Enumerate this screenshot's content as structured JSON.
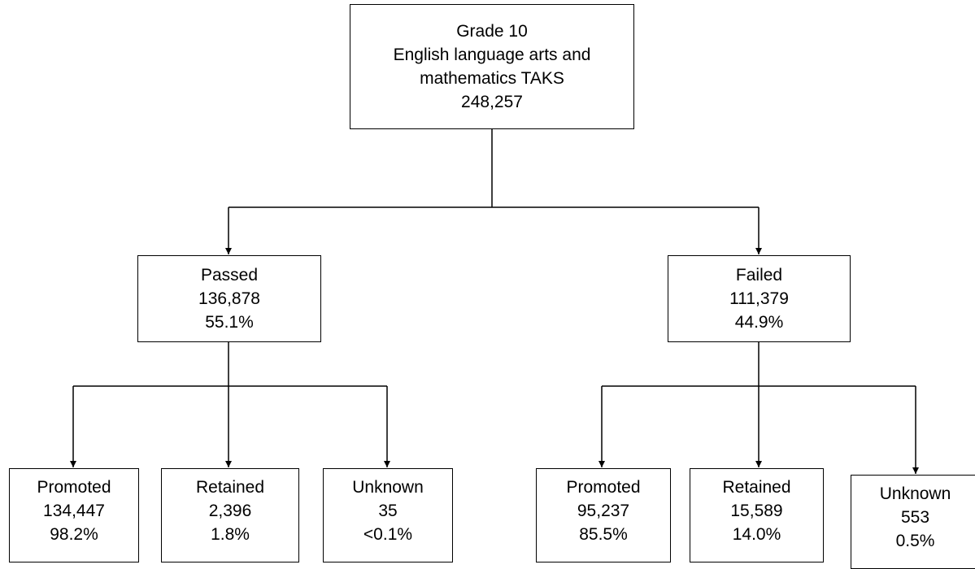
{
  "root": {
    "line1": "Grade 10",
    "line2": "English language arts and",
    "line3": "mathematics TAKS",
    "count": "248,257"
  },
  "passed": {
    "label": "Passed",
    "count": "136,878",
    "pct": "55.1%"
  },
  "failed": {
    "label": "Failed",
    "count": "111,379",
    "pct": "44.9%"
  },
  "passed_children": [
    {
      "label": "Promoted",
      "count": "134,447",
      "pct": "98.2%"
    },
    {
      "label": "Retained",
      "count": "2,396",
      "pct": "1.8%"
    },
    {
      "label": "Unknown",
      "count": "35",
      "pct": "<0.1%"
    }
  ],
  "failed_children": [
    {
      "label": "Promoted",
      "count": "95,237",
      "pct": "85.5%"
    },
    {
      "label": "Retained",
      "count": "15,589",
      "pct": "14.0%"
    },
    {
      "label": "Unknown",
      "count": "553",
      "pct": "0.5%"
    }
  ]
}
